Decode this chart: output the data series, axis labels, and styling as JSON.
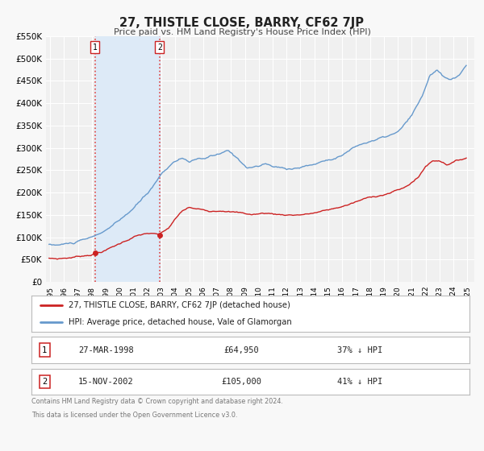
{
  "title": "27, THISTLE CLOSE, BARRY, CF62 7JP",
  "subtitle": "Price paid vs. HM Land Registry's House Price Index (HPI)",
  "ylim": [
    0,
    550000
  ],
  "yticks": [
    0,
    50000,
    100000,
    150000,
    200000,
    250000,
    300000,
    350000,
    400000,
    450000,
    500000,
    550000
  ],
  "ytick_labels": [
    "£0",
    "£50K",
    "£100K",
    "£150K",
    "£200K",
    "£250K",
    "£300K",
    "£350K",
    "£400K",
    "£450K",
    "£500K",
    "£550K"
  ],
  "xlim_start": 1994.7,
  "xlim_end": 2025.5,
  "xticks": [
    1995,
    1996,
    1997,
    1998,
    1999,
    2000,
    2001,
    2002,
    2003,
    2004,
    2005,
    2006,
    2007,
    2008,
    2009,
    2010,
    2011,
    2012,
    2013,
    2014,
    2015,
    2016,
    2017,
    2018,
    2019,
    2020,
    2021,
    2022,
    2023,
    2024,
    2025
  ],
  "background_color": "#f8f8f8",
  "plot_bg_color": "#f0f0f0",
  "grid_color": "#ffffff",
  "sale1_date": 1998.22,
  "sale1_price": 64950,
  "sale2_date": 2002.87,
  "sale2_price": 105000,
  "shade_color": "#ddeaf7",
  "red_line_color": "#cc2222",
  "blue_line_color": "#6699cc",
  "dot_color": "#cc2222",
  "vline_color": "#dd4444",
  "legend_label1": "27, THISTLE CLOSE, BARRY, CF62 7JP (detached house)",
  "legend_label2": "HPI: Average price, detached house, Vale of Glamorgan",
  "table_row1": [
    "1",
    "27-MAR-1998",
    "£64,950",
    "37% ↓ HPI"
  ],
  "table_row2": [
    "2",
    "15-NOV-2002",
    "£105,000",
    "41% ↓ HPI"
  ],
  "footnote1": "Contains HM Land Registry data © Crown copyright and database right 2024.",
  "footnote2": "This data is licensed under the Open Government Licence v3.0."
}
